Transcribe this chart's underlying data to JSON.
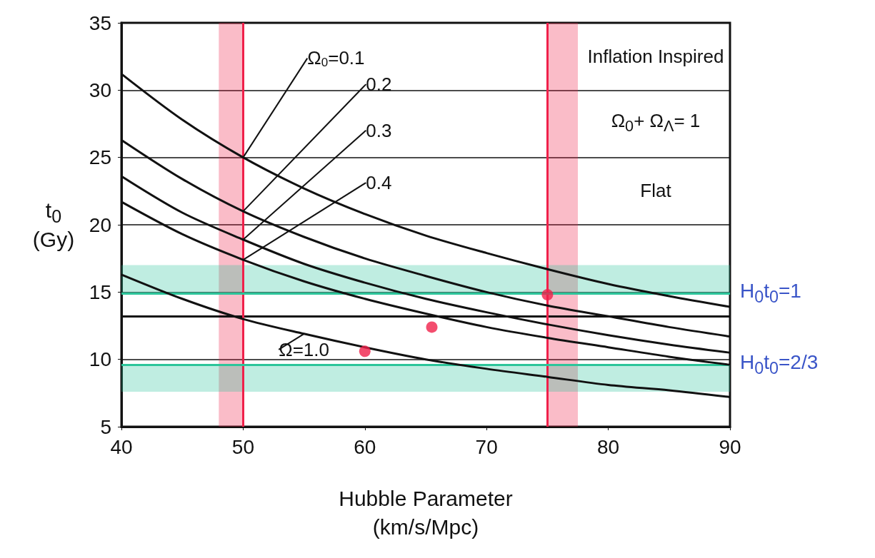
{
  "chart_data": {
    "type": "line",
    "xlabel": "Hubble Parameter (km/s/Mpc)",
    "ylabel": "t$_{0}$ (Gy)",
    "x": [
      40,
      45,
      50,
      55,
      60,
      65,
      70,
      75,
      80,
      85,
      90
    ],
    "series": [
      {
        "name": "Ω$_{0}$=0.1",
        "color": "#111111",
        "values": [
          31.2,
          27.8,
          25.0,
          22.7,
          20.8,
          19.2,
          17.9,
          16.7,
          15.6,
          14.7,
          13.9
        ]
      },
      {
        "name": "0.2",
        "color": "#111111",
        "values": [
          26.3,
          23.4,
          21.0,
          19.1,
          17.5,
          16.2,
          15.0,
          14.0,
          13.2,
          12.4,
          11.7
        ]
      },
      {
        "name": "0.3",
        "color": "#111111",
        "values": [
          23.6,
          20.9,
          18.9,
          17.1,
          15.7,
          14.5,
          13.5,
          12.6,
          11.8,
          11.1,
          10.5
        ]
      },
      {
        "name": "0.4",
        "color": "#111111",
        "values": [
          21.7,
          19.3,
          17.4,
          15.8,
          14.5,
          13.4,
          12.4,
          11.6,
          10.9,
          10.2,
          9.6
        ]
      },
      {
        "name": "Ω=1.0",
        "color": "#111111",
        "values": [
          16.3,
          14.5,
          13.0,
          11.9,
          10.9,
          10.0,
          9.3,
          8.7,
          8.1,
          7.7,
          7.2
        ]
      },
      {
        "type": "scatter",
        "color": "#f0204a",
        "x": [
          60,
          65.5,
          75
        ],
        "values": [
          10.6,
          12.4,
          14.8
        ]
      }
    ],
    "xlim": [
      40,
      90
    ],
    "xticks": [
      40,
      50,
      60,
      70,
      80,
      90
    ],
    "ylim": [
      5,
      35
    ],
    "yticks": [
      5,
      10,
      15,
      20,
      25,
      30,
      35
    ],
    "grid": "y",
    "ref_lines": [
      {
        "axis": "y",
        "value": 13.2,
        "color": "#111111"
      },
      {
        "axis": "x",
        "value": 50,
        "color": "#f0204a"
      },
      {
        "axis": "x",
        "value": 75,
        "color": "#f0204a"
      },
      {
        "axis": "y",
        "value": 14.9,
        "color": "#2cc59a"
      },
      {
        "axis": "y",
        "value": 9.6,
        "color": "#2cc59a"
      }
    ],
    "bands": [
      {
        "axis": "x",
        "from": 48,
        "to": 50,
        "color": "#f0204a"
      },
      {
        "axis": "x",
        "from": 75,
        "to": 77.5,
        "color": "#f0204a"
      },
      {
        "axis": "y",
        "from": 14.9,
        "to": 17,
        "color": "#2cc59a"
      },
      {
        "axis": "y",
        "from": 7.6,
        "to": 9.6,
        "color": "#2cc59a"
      }
    ],
    "annotations": [
      "Inflation Inspired",
      "Ω$_{0}$+ Ω$_{Λ}$= 1",
      "Flat",
      {
        "text": "H$_{0}$t$_{0}$=1",
        "x": 90,
        "y": 14.9
      },
      {
        "text": "H$_{0}$t$_{0}$=2/3",
        "x": 90,
        "y": 9.6
      }
    ]
  }
}
